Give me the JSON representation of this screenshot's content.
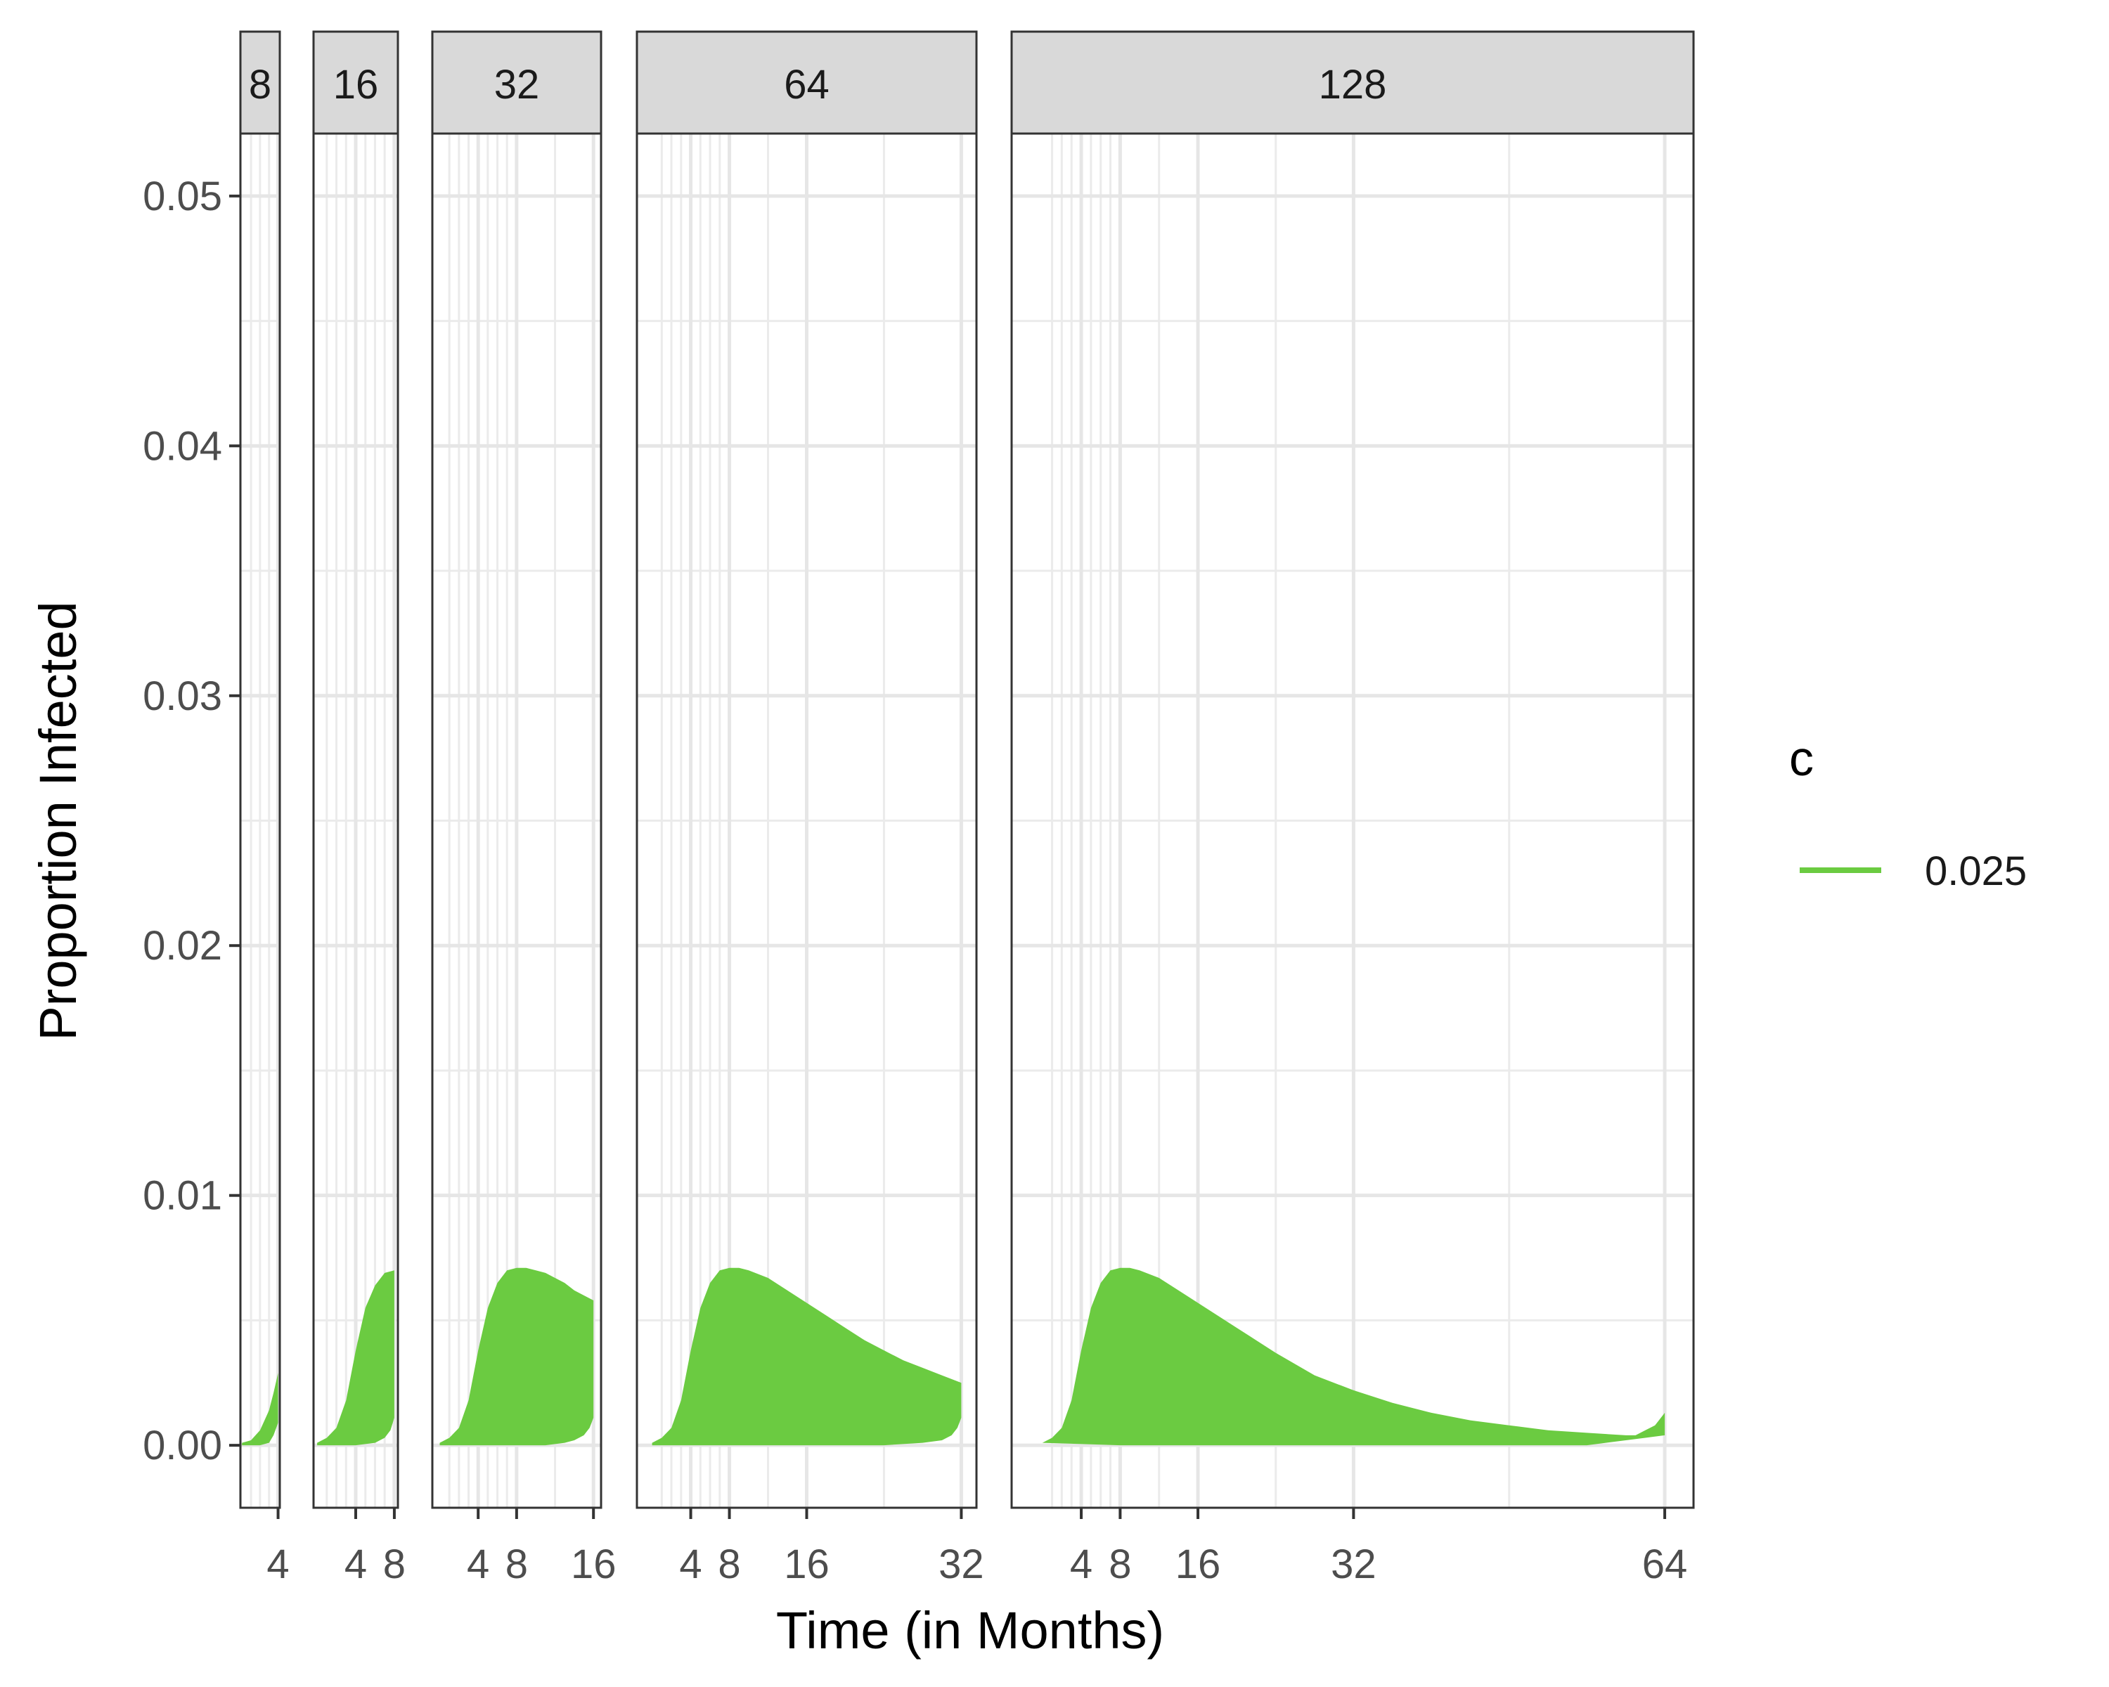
{
  "chart_data": {
    "type": "area",
    "title": "",
    "xlabel": "Time (in Months)",
    "ylabel": "Proportion Infected",
    "ylim": [
      -0.0025,
      0.0525
    ],
    "yticks": [
      0.0,
      0.01,
      0.02,
      0.03,
      0.04,
      0.05
    ],
    "ytick_labels": [
      "0.00",
      "0.01",
      "0.02",
      "0.03",
      "0.04",
      "0.05"
    ],
    "grid": true,
    "legend": {
      "title": "c",
      "position": "right",
      "entries": [
        {
          "label": "0.025",
          "color": "#6BCB41"
        }
      ]
    },
    "fill_color": "#6BCB41",
    "panels": [
      {
        "strip": "8",
        "xlim": [
          -0.17,
          4.19
        ],
        "xticks": [
          4
        ],
        "xtick_labels": [
          "4"
        ],
        "upper": [
          [
            0,
            0.0001
          ],
          [
            1,
            0.0002
          ],
          [
            2,
            0.0006
          ],
          [
            3,
            0.0014
          ],
          [
            3.5,
            0.0021
          ],
          [
            4,
            0.0029
          ]
        ],
        "lower": [
          [
            0,
            0.0
          ],
          [
            2,
            0.0
          ],
          [
            3,
            0.0001
          ],
          [
            3.5,
            0.0004
          ],
          [
            4,
            0.0009
          ]
        ]
      },
      {
        "strip": "16",
        "xlim": [
          -0.37,
          8.37
        ],
        "xticks": [
          4,
          8
        ],
        "xtick_labels": [
          "4",
          "8"
        ],
        "upper": [
          [
            0,
            0.0001
          ],
          [
            1,
            0.0003
          ],
          [
            2,
            0.0007
          ],
          [
            3,
            0.0018
          ],
          [
            4,
            0.0038
          ],
          [
            5,
            0.0055
          ],
          [
            6,
            0.0064
          ],
          [
            7,
            0.0069
          ],
          [
            8,
            0.007
          ]
        ],
        "lower": [
          [
            0,
            0.0
          ],
          [
            4,
            0.0
          ],
          [
            6,
            0.0001
          ],
          [
            7,
            0.0003
          ],
          [
            7.6,
            0.0006
          ],
          [
            8,
            0.0011
          ]
        ]
      },
      {
        "strip": "32",
        "xlim": [
          -0.77,
          16.79
        ],
        "xticks": [
          4,
          8,
          16
        ],
        "xtick_labels": [
          "4",
          "8",
          "16"
        ],
        "upper": [
          [
            0,
            0.0001
          ],
          [
            1,
            0.0003
          ],
          [
            2,
            0.0007
          ],
          [
            3,
            0.0018
          ],
          [
            4,
            0.0038
          ],
          [
            5,
            0.0055
          ],
          [
            6,
            0.0065
          ],
          [
            7,
            0.007
          ],
          [
            8,
            0.0071
          ],
          [
            9,
            0.0071
          ],
          [
            10,
            0.007
          ],
          [
            11,
            0.0069
          ],
          [
            12,
            0.0067
          ],
          [
            13,
            0.0065
          ],
          [
            14,
            0.0062
          ],
          [
            15,
            0.006
          ],
          [
            16,
            0.0058
          ]
        ],
        "lower": [
          [
            0,
            0.0
          ],
          [
            11,
            0.0
          ],
          [
            13,
            0.0001
          ],
          [
            14,
            0.0002
          ],
          [
            15,
            0.0004
          ],
          [
            15.6,
            0.0007
          ],
          [
            16,
            0.0011
          ]
        ]
      },
      {
        "strip": "64",
        "xlim": [
          -1.57,
          33.57
        ],
        "xticks": [
          4,
          8,
          16,
          32
        ],
        "xtick_labels": [
          "4",
          "8",
          "16",
          "32"
        ],
        "upper": [
          [
            0,
            0.0001
          ],
          [
            1,
            0.0003
          ],
          [
            2,
            0.0007
          ],
          [
            3,
            0.0018
          ],
          [
            4,
            0.0038
          ],
          [
            5,
            0.0055
          ],
          [
            6,
            0.0065
          ],
          [
            7,
            0.007
          ],
          [
            8,
            0.0071
          ],
          [
            9,
            0.0071
          ],
          [
            10,
            0.007
          ],
          [
            12,
            0.0067
          ],
          [
            14,
            0.0062
          ],
          [
            16,
            0.0057
          ],
          [
            18,
            0.0052
          ],
          [
            20,
            0.0047
          ],
          [
            22,
            0.0042
          ],
          [
            24,
            0.0038
          ],
          [
            26,
            0.0034
          ],
          [
            28,
            0.0031
          ],
          [
            30,
            0.0028
          ],
          [
            32,
            0.0025
          ]
        ],
        "lower": [
          [
            0,
            0.0
          ],
          [
            24,
            0.0
          ],
          [
            28,
            0.0001
          ],
          [
            30,
            0.0002
          ],
          [
            31,
            0.0004
          ],
          [
            31.6,
            0.0007
          ],
          [
            32,
            0.0011
          ]
        ]
      },
      {
        "strip": "128",
        "xlim": [
          -3.16,
          66.96
        ],
        "xticks": [
          4,
          8,
          16,
          32,
          64
        ],
        "xtick_labels": [
          "4",
          "8",
          "16",
          "32",
          "64"
        ],
        "upper": [
          [
            0,
            0.0001
          ],
          [
            1,
            0.0003
          ],
          [
            2,
            0.0007
          ],
          [
            3,
            0.0018
          ],
          [
            4,
            0.0038
          ],
          [
            5,
            0.0055
          ],
          [
            6,
            0.0065
          ],
          [
            7,
            0.007
          ],
          [
            8,
            0.0071
          ],
          [
            9,
            0.0071
          ],
          [
            10,
            0.007
          ],
          [
            12,
            0.0067
          ],
          [
            14,
            0.0062
          ],
          [
            16,
            0.0057
          ],
          [
            20,
            0.0047
          ],
          [
            24,
            0.0037
          ],
          [
            28,
            0.0028
          ],
          [
            32,
            0.0022
          ],
          [
            36,
            0.0017
          ],
          [
            40,
            0.0013
          ],
          [
            44,
            0.001
          ],
          [
            48,
            0.0008
          ],
          [
            52,
            0.0006
          ],
          [
            56,
            0.0005
          ],
          [
            60,
            0.0004
          ],
          [
            61,
            0.0004
          ],
          [
            62,
            0.0006
          ],
          [
            63,
            0.0008
          ],
          [
            64,
            0.0013
          ]
        ],
        "lower": [
          [
            0,
            0.0001
          ],
          [
            8,
            0.0
          ],
          [
            56,
            0.0
          ],
          [
            60,
            0.0002
          ],
          [
            62,
            0.0003
          ],
          [
            64,
            0.0004
          ]
        ]
      }
    ]
  }
}
